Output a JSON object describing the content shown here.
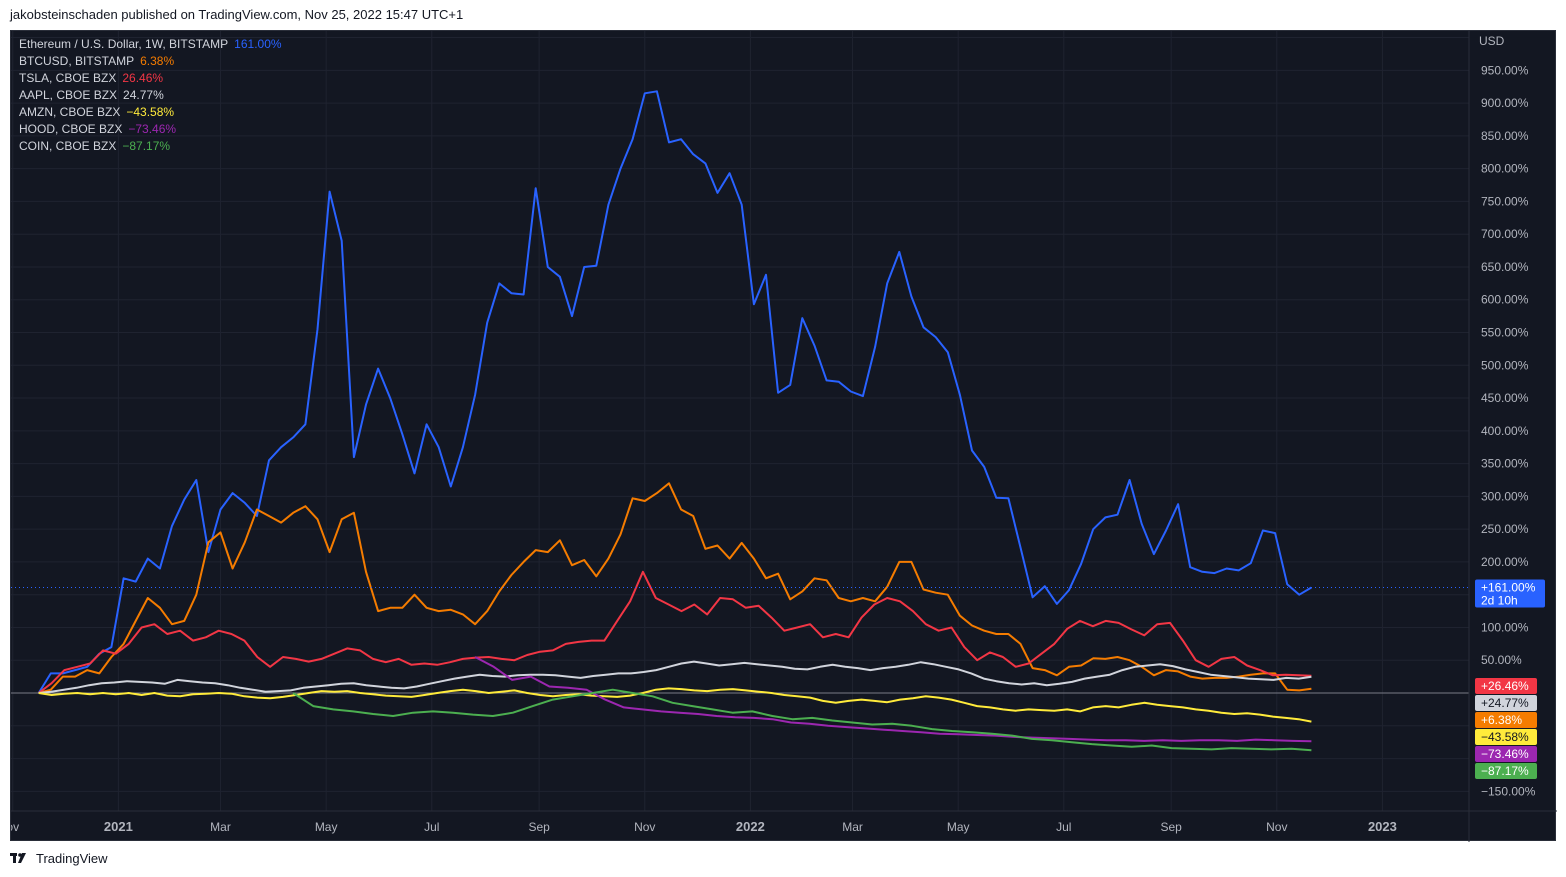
{
  "header": {
    "publisher_line": "jakobsteinschaden published on TradingView.com, Nov 25, 2022 15:47 UTC+1"
  },
  "footer": {
    "brand": "TradingView",
    "logo_icon": "tradingview-logo-icon"
  },
  "theme": {
    "background": "#131722",
    "grid": "#1f2330",
    "axis_text": "#b2b5be",
    "legend_text": "#d1d4dc",
    "zero_line": "#787b86"
  },
  "chart_data": {
    "type": "line",
    "currency_label": "USD",
    "y_axis_ticks": [
      "950.00%",
      "900.00%",
      "850.00%",
      "800.00%",
      "750.00%",
      "700.00%",
      "650.00%",
      "600.00%",
      "550.00%",
      "500.00%",
      "450.00%",
      "400.00%",
      "350.00%",
      "300.00%",
      "250.00%",
      "200.00%",
      "100.00%",
      "50.00%",
      "−150.00%"
    ],
    "y_axis_tick_values": [
      950,
      900,
      850,
      800,
      750,
      700,
      650,
      600,
      550,
      500,
      450,
      400,
      350,
      300,
      250,
      200,
      100,
      50,
      -150
    ],
    "x_axis_ticks": [
      {
        "label": "ov",
        "date": "2020-11-01",
        "bold": false
      },
      {
        "label": "2021",
        "date": "2021-01-01",
        "bold": true
      },
      {
        "label": "Mar",
        "date": "2021-03-01",
        "bold": false
      },
      {
        "label": "May",
        "date": "2021-05-01",
        "bold": false
      },
      {
        "label": "Jul",
        "date": "2021-07-01",
        "bold": false
      },
      {
        "label": "Sep",
        "date": "2021-09-01",
        "bold": false
      },
      {
        "label": "Nov",
        "date": "2021-11-01",
        "bold": false
      },
      {
        "label": "2022",
        "date": "2022-01-01",
        "bold": true
      },
      {
        "label": "Mar",
        "date": "2022-03-01",
        "bold": false
      },
      {
        "label": "May",
        "date": "2022-05-01",
        "bold": false
      },
      {
        "label": "Jul",
        "date": "2022-07-01",
        "bold": false
      },
      {
        "label": "Sep",
        "date": "2022-09-01",
        "bold": false
      },
      {
        "label": "Nov",
        "date": "2022-11-01",
        "bold": false
      },
      {
        "label": "2023",
        "date": "2023-01-01",
        "bold": true
      }
    ],
    "x_range": [
      "2020-10-31",
      "2023-02-20"
    ],
    "y_range": [
      -180,
      1010
    ],
    "zero_line": true,
    "grid": true,
    "legend_position": "top-left",
    "start_date": "2020-11-16",
    "interval": "1W",
    "series": [
      {
        "name": "Ethereum / U.S. Dollar, 1W, BITSTAMP",
        "legend_value": "161.00%",
        "badge_label": "+161.00%",
        "badge_sub": "2d 10h",
        "color": "#2962ff",
        "values": [
          0,
          30,
          30,
          35,
          40,
          60,
          70,
          175,
          170,
          205,
          190,
          255,
          295,
          325,
          215,
          280,
          305,
          290,
          270,
          355,
          375,
          390,
          410,
          555,
          765,
          690,
          360,
          440,
          495,
          450,
          395,
          335,
          410,
          375,
          315,
          375,
          455,
          565,
          625,
          610,
          608,
          770,
          650,
          635,
          575,
          650,
          652,
          745,
          800,
          845,
          915,
          918,
          840,
          845,
          822,
          808,
          763,
          793,
          745,
          593,
          638,
          458,
          470,
          572,
          530,
          477,
          475,
          460,
          453,
          528,
          625,
          673,
          605,
          558,
          543,
          520,
          455,
          370,
          345,
          298,
          297,
          222,
          146,
          163,
          136,
          157,
          197,
          250,
          268,
          272,
          325,
          258,
          212,
          248,
          288,
          192,
          185,
          183,
          190,
          187,
          198,
          248,
          244,
          166,
          150,
          161
        ]
      },
      {
        "name": "BTCUSD, BITSTAMP",
        "legend_value": "6.38%",
        "badge_label": "+6.38%",
        "color": "#f57c00",
        "values": [
          0,
          5,
          25,
          25,
          35,
          30,
          55,
          75,
          110,
          145,
          130,
          105,
          110,
          150,
          230,
          245,
          190,
          230,
          280,
          270,
          260,
          275,
          285,
          265,
          215,
          265,
          275,
          185,
          125,
          130,
          130,
          150,
          130,
          125,
          127,
          120,
          105,
          125,
          155,
          180,
          200,
          218,
          215,
          233,
          195,
          203,
          178,
          205,
          242,
          297,
          293,
          305,
          320,
          280,
          270,
          220,
          225,
          205,
          229,
          205,
          175,
          182,
          143,
          155,
          175,
          172,
          145,
          140,
          145,
          140,
          162,
          200,
          200,
          158,
          153,
          150,
          118,
          103,
          95,
          90,
          90,
          75,
          38,
          35,
          27,
          40,
          42,
          53,
          52,
          55,
          50,
          40,
          27,
          35,
          33,
          25,
          22,
          23,
          23,
          25,
          28,
          30,
          30,
          5,
          4,
          6.38
        ]
      },
      {
        "name": "TSLA, CBOE BZX",
        "legend_value": "26.46%",
        "badge_label": "+26.46%",
        "color": "#f23645",
        "values": [
          0,
          15,
          35,
          40,
          45,
          65,
          60,
          75,
          100,
          105,
          90,
          95,
          80,
          85,
          95,
          90,
          80,
          55,
          40,
          55,
          52,
          48,
          52,
          60,
          68,
          65,
          52,
          47,
          52,
          43,
          45,
          43,
          47,
          52,
          54,
          55,
          52,
          50,
          58,
          63,
          65,
          75,
          78,
          80,
          80,
          110,
          140,
          185,
          145,
          135,
          125,
          135,
          120,
          145,
          143,
          130,
          133,
          115,
          95,
          100,
          105,
          85,
          90,
          85,
          115,
          135,
          145,
          140,
          125,
          105,
          95,
          100,
          70,
          50,
          62,
          55,
          40,
          45,
          60,
          75,
          98,
          110,
          102,
          110,
          107,
          97,
          88,
          105,
          107,
          80,
          50,
          40,
          52,
          55,
          42,
          35,
          27,
          28,
          27,
          26.46
        ]
      },
      {
        "name": "AAPL, CBOE BZX",
        "legend_value": "24.77%",
        "badge_label": "+24.77%",
        "color": "#d1d4dc",
        "values": [
          0,
          2,
          5,
          8,
          12,
          15,
          16,
          18,
          17,
          16,
          14,
          20,
          18,
          16,
          15,
          12,
          8,
          5,
          2,
          3,
          4,
          8,
          10,
          12,
          14,
          15,
          12,
          10,
          8,
          7,
          10,
          14,
          18,
          22,
          25,
          28,
          26,
          25,
          27,
          28,
          28,
          27,
          25,
          23,
          26,
          28,
          30,
          30,
          32,
          35,
          40,
          45,
          48,
          45,
          42,
          44,
          46,
          44,
          42,
          40,
          37,
          36,
          40,
          43,
          40,
          38,
          35,
          38,
          40,
          43,
          47,
          44,
          40,
          36,
          30,
          22,
          18,
          15,
          13,
          15,
          12,
          14,
          17,
          22,
          25,
          28,
          35,
          40,
          42,
          44,
          41,
          36,
          32,
          28,
          26,
          24,
          22,
          21,
          20,
          23,
          22,
          24.77
        ]
      },
      {
        "name": "AMZN, CBOE BZX",
        "legend_value": "−43.58%",
        "badge_label": "−43.58%",
        "color": "#ffeb3b",
        "values": [
          0,
          -3,
          -1,
          0,
          -2,
          0,
          -2,
          0,
          -3,
          0,
          -4,
          -5,
          -2,
          -1,
          0,
          -1,
          -5,
          -7,
          -8,
          -6,
          -3,
          0,
          3,
          2,
          3,
          0,
          -2,
          -4,
          -5,
          -6,
          -3,
          0,
          3,
          5,
          3,
          0,
          2,
          4,
          0,
          -3,
          -5,
          -3,
          -2,
          -4,
          -5,
          -6,
          -4,
          0,
          5,
          7,
          6,
          4,
          3,
          5,
          6,
          4,
          2,
          0,
          -3,
          -5,
          -7,
          -12,
          -15,
          -12,
          -10,
          -12,
          -14,
          -10,
          -8,
          -5,
          -7,
          -10,
          -15,
          -20,
          -22,
          -25,
          -27,
          -25,
          -26,
          -27,
          -25,
          -28,
          -22,
          -20,
          -22,
          -18,
          -15,
          -18,
          -20,
          -22,
          -25,
          -27,
          -30,
          -32,
          -31,
          -33,
          -36,
          -38,
          -40,
          -43.58
        ]
      },
      {
        "name": "HOOD, CBOE BZX",
        "legend_value": "−73.46%",
        "badge_label": "−73.46%",
        "color": "#9c27b0",
        "values": [
          55,
          40,
          20,
          25,
          10,
          8,
          5,
          -10,
          -22,
          -25,
          -28,
          -30,
          -32,
          -35,
          -37,
          -38,
          -40,
          -45,
          -47,
          -50,
          -52,
          -54,
          -56,
          -58,
          -60,
          -62,
          -63,
          -64,
          -65,
          -67,
          -68,
          -69,
          -70,
          -71,
          -72,
          -72,
          -73,
          -72,
          -73,
          -72,
          -72,
          -73,
          -71,
          -72,
          -73,
          -73.46
        ]
      },
      {
        "name": "COIN, CBOE BZX",
        "legend_value": "−87.17%",
        "badge_label": "−87.17%",
        "color": "#4caf50",
        "values": [
          0,
          -20,
          -25,
          -28,
          -32,
          -35,
          -30,
          -28,
          -30,
          -33,
          -35,
          -30,
          -20,
          -10,
          -5,
          0,
          5,
          0,
          -5,
          -15,
          -20,
          -25,
          -30,
          -28,
          -35,
          -40,
          -38,
          -42,
          -45,
          -48,
          -47,
          -50,
          -55,
          -58,
          -60,
          -62,
          -65,
          -70,
          -72,
          -75,
          -78,
          -80,
          -82,
          -80,
          -84,
          -85,
          -86,
          -84,
          -85,
          -86,
          -85,
          -87.17
        ]
      }
    ]
  }
}
